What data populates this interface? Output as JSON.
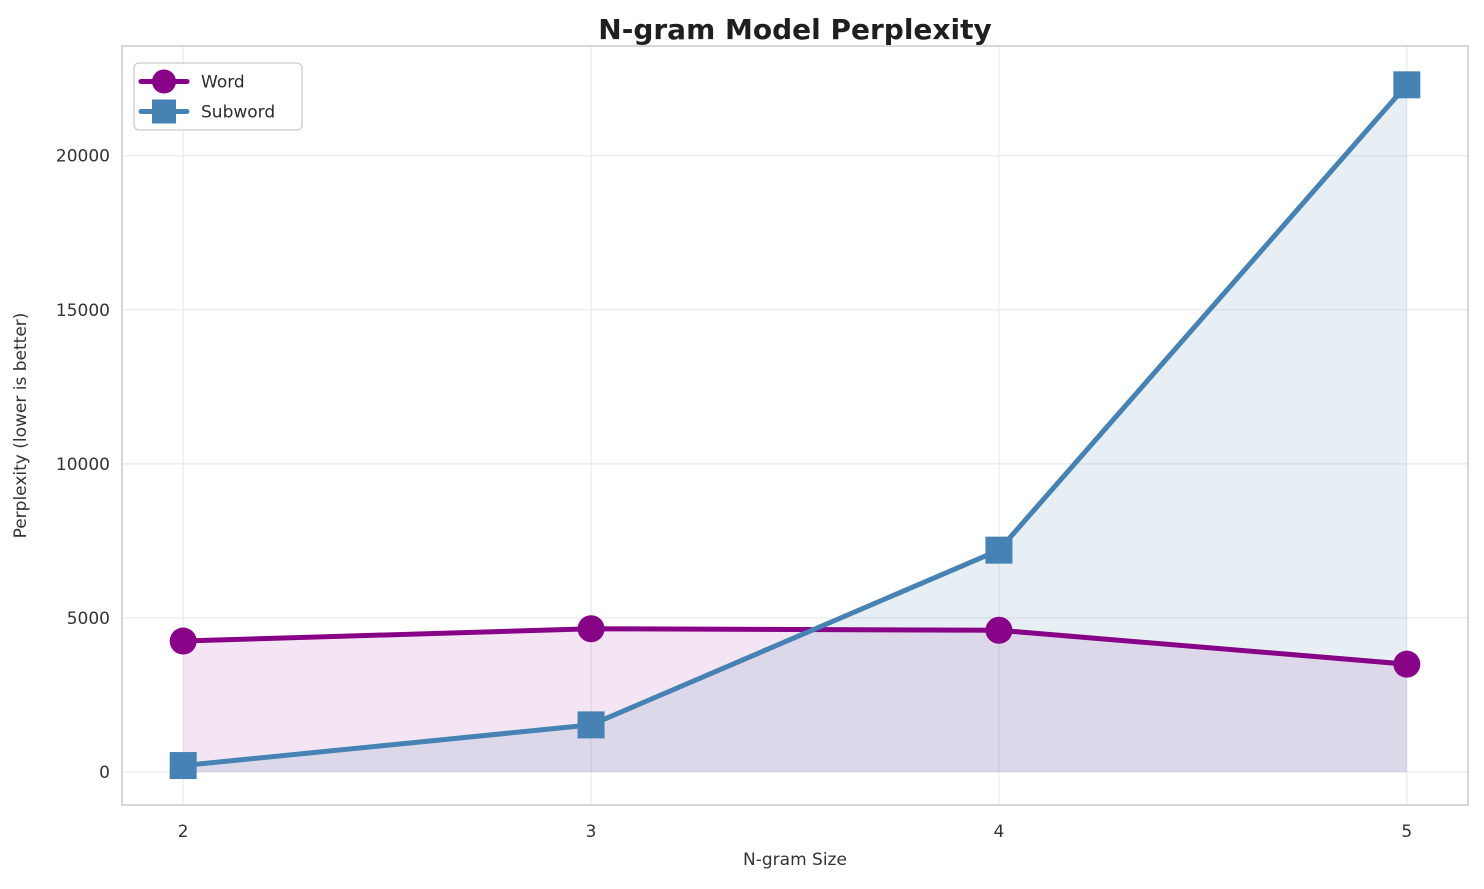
{
  "figure": {
    "title": "N-gram Model Perplexity",
    "xlabel": "N-gram Size",
    "ylabel": "Perplexity (lower is better)"
  },
  "chart_data": {
    "type": "line",
    "title": "N-gram Model Perplexity",
    "xlabel": "N-gram Size",
    "ylabel": "Perplexity (lower is better)",
    "x": [
      2,
      3,
      4,
      5
    ],
    "series": [
      {
        "name": "Word",
        "values": [
          4250,
          4650,
          4600,
          3500
        ],
        "color": "#870287",
        "marker": "circle",
        "fill_opacity": 0.1
      },
      {
        "name": "Subword",
        "values": [
          210,
          1530,
          7200,
          22300
        ],
        "color": "#4682B4",
        "marker": "square",
        "fill_opacity": 0.13
      }
    ],
    "xticks": [
      2,
      3,
      4,
      5
    ],
    "yticks": [
      0,
      5000,
      10000,
      15000,
      20000
    ],
    "xlim": [
      1.85,
      5.15
    ],
    "ylim": [
      -1070,
      23560
    ],
    "grid": true,
    "area_fill": true,
    "legend_position": "upper left",
    "colors": {
      "grid": "#ededed",
      "spine": "#cdcdcd",
      "tick_text": "#333333",
      "title_text": "#1f1f1f",
      "legend_border": "#cccccc",
      "legend_bg": "#ffffff",
      "plot_bg": "#ffffff"
    }
  }
}
